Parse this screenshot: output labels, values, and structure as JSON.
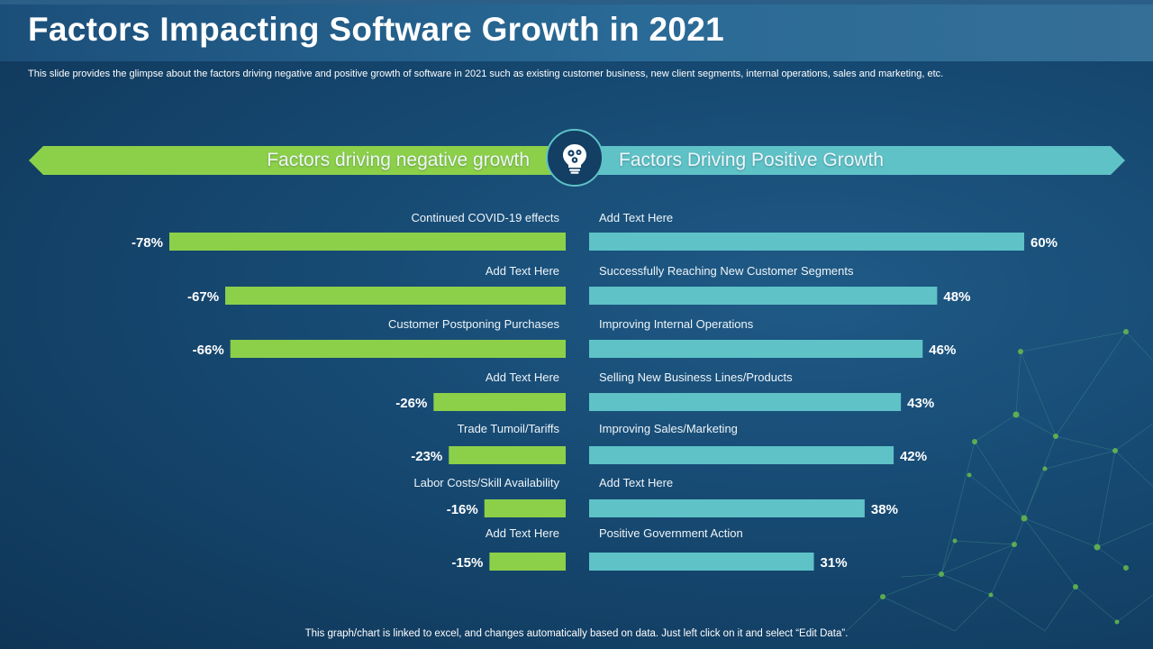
{
  "slide": {
    "title": "Factors Impacting Software Growth in 2021",
    "subtitle": "This slide provides the glimpse about the factors driving negative and positive growth of software in 2021 such as existing customer business, new client segments, internal operations, sales and marketing, etc.",
    "footer": "This graph/chart is linked to excel,  and changes automatically based on data. Just left click on it and select “Edit Data”.",
    "icon": "lightbulb-gears-icon"
  },
  "banner": {
    "negative_label": "Factors driving negative growth",
    "positive_label": "Factors Driving Positive Growth"
  },
  "colors": {
    "negative": "#8cd04a",
    "positive": "#5ec2c7",
    "accent_circle": "#5ec2c7"
  },
  "chart_data": [
    {
      "type": "bar",
      "orientation": "horizontal",
      "title": "Factors driving negative growth",
      "categories": [
        "Continued COVID-19 effects",
        "Add Text Here",
        "Customer Postponing Purchases",
        "Add Text Here",
        "Trade Tumoil/Tariffs",
        "Labor Costs/Skill Availability",
        "Add Text Here"
      ],
      "values": [
        -78,
        -67,
        -66,
        -26,
        -23,
        -16,
        -15
      ],
      "labels": [
        "-78%",
        "-67%",
        "-66%",
        "-26%",
        "-23%",
        "-16%",
        "-15%"
      ],
      "unit": "%",
      "xlim": [
        -80,
        0
      ]
    },
    {
      "type": "bar",
      "orientation": "horizontal",
      "title": "Factors Driving Positive Growth",
      "categories": [
        "Add Text Here",
        "Successfully  Reaching New Customer Segments",
        "Improving Internal Operations",
        "Selling New Business Lines/Products",
        "Improving Sales/Marketing",
        "Add Text Here",
        "Positive Government Action"
      ],
      "values": [
        60,
        48,
        46,
        43,
        42,
        38,
        31
      ],
      "labels": [
        "60%",
        "48%",
        "46%",
        "43%",
        "42%",
        "38%",
        "31%"
      ],
      "unit": "%",
      "xlim": [
        0,
        60
      ]
    }
  ]
}
